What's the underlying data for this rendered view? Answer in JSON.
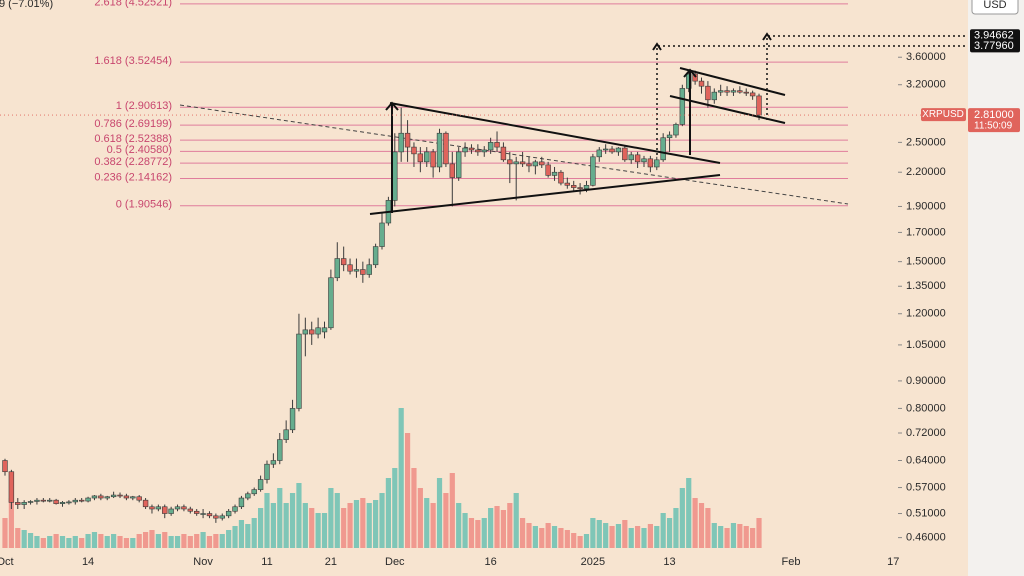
{
  "chart_data": {
    "type": "candlestick",
    "header_fragment": "9 (−7.01%)",
    "currency": "USD",
    "log_scale": true,
    "ylim": [
      0.44,
      4.6
    ],
    "yticks": [
      {
        "value": 3.6,
        "label": "3.60000"
      },
      {
        "value": 3.2,
        "label": "3.20000"
      },
      {
        "value": 2.5,
        "label": "2.50000"
      },
      {
        "value": 2.2,
        "label": "2.20000"
      },
      {
        "value": 1.9,
        "label": "1.90000"
      },
      {
        "value": 1.7,
        "label": "1.70000"
      },
      {
        "value": 1.5,
        "label": "1.50000"
      },
      {
        "value": 1.35,
        "label": "1.35000"
      },
      {
        "value": 1.2,
        "label": "1.20000"
      },
      {
        "value": 1.05,
        "label": "1.05000"
      },
      {
        "value": 0.9,
        "label": "0.90000"
      },
      {
        "value": 0.8,
        "label": "0.80000"
      },
      {
        "value": 0.72,
        "label": "0.72000"
      },
      {
        "value": 0.64,
        "label": "0.64000"
      },
      {
        "value": 0.57,
        "label": "0.57000"
      },
      {
        "value": 0.51,
        "label": "0.51000"
      },
      {
        "value": 0.46,
        "label": "0.46000"
      }
    ],
    "fib_levels": [
      {
        "label": "2.618 (4.52521)",
        "value": 4.52521
      },
      {
        "label": "1.618 (3.52454)",
        "value": 3.52454
      },
      {
        "label": "1 (2.90613)",
        "value": 2.90613
      },
      {
        "label": "0.786 (2.69199)",
        "value": 2.69199
      },
      {
        "label": "0.618 (2.52388)",
        "value": 2.52388
      },
      {
        "label": "0.5 (2.40580)",
        "value": 2.4058
      },
      {
        "label": "0.382 (2.28772)",
        "value": 2.28772
      },
      {
        "label": "0.236 (2.14162)",
        "value": 2.14162
      },
      {
        "label": "0 (1.90546)",
        "value": 1.90546
      }
    ],
    "fib_color": "#e07d9c",
    "target_levels": [
      3.94662,
      {
        "value": 3.7796,
        "label": "3.77960"
      }
    ],
    "last_price": {
      "symbol": "XRPUSD",
      "value": 2.81,
      "label": "2.81000",
      "countdown": "11:50:09"
    },
    "up_color": "#66ad8e",
    "down_color": "#e0645c",
    "volume_up_color": "#7fc6b7",
    "volume_down_color": "#f0998f",
    "categories": [
      "Oct",
      null,
      null,
      null,
      null,
      null,
      null,
      null,
      null,
      null,
      null,
      null,
      null,
      "14",
      null,
      null,
      null,
      null,
      null,
      null,
      null,
      null,
      null,
      null,
      null,
      null,
      null,
      null,
      null,
      null,
      null,
      "Nov",
      null,
      null,
      null,
      null,
      null,
      null,
      null,
      null,
      null,
      "11",
      null,
      null,
      null,
      null,
      null,
      null,
      null,
      null,
      null,
      "21",
      null,
      null,
      null,
      null,
      null,
      null,
      null,
      null,
      null,
      "Dec",
      null,
      null,
      null,
      null,
      null,
      null,
      null,
      null,
      null,
      null,
      null,
      null,
      null,
      null,
      "16",
      null,
      null,
      null,
      null,
      null,
      null,
      null,
      null,
      null,
      null,
      null,
      null,
      null,
      null,
      null,
      "2025",
      null,
      null,
      null,
      null,
      null,
      null,
      null,
      null,
      null,
      null,
      null,
      "13",
      null,
      null,
      null,
      null,
      null,
      null,
      null,
      null,
      null,
      null,
      null,
      null,
      null,
      null,
      null,
      null,
      null,
      null,
      "Feb",
      null,
      null,
      null,
      null,
      null,
      null,
      null,
      null,
      null,
      null,
      null,
      null,
      null,
      null,
      null,
      "17"
    ],
    "open": [
      0.64,
      0.61,
      0.535,
      0.53,
      0.535,
      0.537,
      0.54,
      0.538,
      0.54,
      0.532,
      0.535,
      0.536,
      0.54,
      0.538,
      0.545,
      0.55,
      0.545,
      0.548,
      0.552,
      0.55,
      0.545,
      0.548,
      0.54,
      0.525,
      0.52,
      0.525,
      0.51,
      0.52,
      0.525,
      0.52,
      0.515,
      0.51,
      0.51,
      0.505,
      0.5,
      0.505,
      0.515,
      0.525,
      0.545,
      0.555,
      0.565,
      0.59,
      0.63,
      0.64,
      0.7,
      0.73,
      0.8,
      1.1,
      1.12,
      1.1,
      1.11,
      1.13,
      1.4,
      1.52,
      1.48,
      1.44,
      1.45,
      1.42,
      1.48,
      1.6,
      1.77,
      1.95,
      2.4,
      2.6,
      2.45,
      2.38,
      2.3,
      2.4,
      2.25,
      2.6,
      2.28,
      2.15,
      2.4,
      2.44,
      2.42,
      2.4,
      2.42,
      2.5,
      2.45,
      2.32,
      2.28,
      2.3,
      2.28,
      2.26,
      2.3,
      2.27,
      2.17,
      2.2,
      2.1,
      2.08,
      2.06,
      2.05,
      2.08,
      2.35,
      2.42,
      2.43,
      2.4,
      2.44,
      2.32,
      2.37,
      2.3,
      2.33,
      2.25,
      2.32,
      2.55,
      2.58,
      2.7,
      3.15,
      3.35,
      3.25,
      3.18,
      3.0,
      3.1,
      3.12,
      3.1,
      3.12,
      3.1,
      3.09,
      3.05,
      null,
      null,
      null,
      null,
      null,
      null,
      null,
      null,
      null,
      null,
      null,
      null,
      null,
      null,
      null,
      null,
      null,
      null,
      null,
      null,
      null
    ],
    "high": [
      0.645,
      0.615,
      0.545,
      0.54,
      0.54,
      0.545,
      0.545,
      0.545,
      0.543,
      0.538,
      0.54,
      0.545,
      0.545,
      0.548,
      0.552,
      0.555,
      0.55,
      0.56,
      0.558,
      0.555,
      0.55,
      0.552,
      0.545,
      0.53,
      0.53,
      0.53,
      0.525,
      0.53,
      0.53,
      0.525,
      0.52,
      0.52,
      0.515,
      0.51,
      0.51,
      0.52,
      0.53,
      0.55,
      0.56,
      0.57,
      0.6,
      0.64,
      0.66,
      0.72,
      0.76,
      0.83,
      1.2,
      1.18,
      1.16,
      1.18,
      1.16,
      1.45,
      1.63,
      1.6,
      1.52,
      1.52,
      1.5,
      1.52,
      1.62,
      1.85,
      1.98,
      2.6,
      2.9,
      2.75,
      2.5,
      2.45,
      2.45,
      2.43,
      2.65,
      2.62,
      2.4,
      2.45,
      2.5,
      2.48,
      2.48,
      2.46,
      2.55,
      2.62,
      2.5,
      2.4,
      2.35,
      2.4,
      2.35,
      2.32,
      2.35,
      2.3,
      2.25,
      2.22,
      2.15,
      2.12,
      2.1,
      2.12,
      2.38,
      2.45,
      2.48,
      2.46,
      2.45,
      2.47,
      2.4,
      2.4,
      2.36,
      2.36,
      2.35,
      2.6,
      2.62,
      2.72,
      3.2,
      3.4,
      3.4,
      3.3,
      3.25,
      3.15,
      3.2,
      3.18,
      3.15,
      3.18,
      3.15,
      3.12,
      3.08,
      null,
      null,
      null,
      null,
      null,
      null,
      null,
      null,
      null,
      null,
      null,
      null,
      null,
      null,
      null,
      null,
      null,
      null,
      null,
      null,
      null
    ],
    "low": [
      0.6,
      0.52,
      0.52,
      0.52,
      0.53,
      0.53,
      0.535,
      0.535,
      0.53,
      0.525,
      0.53,
      0.53,
      0.535,
      0.535,
      0.54,
      0.54,
      0.54,
      0.545,
      0.545,
      0.54,
      0.54,
      0.535,
      0.52,
      0.51,
      0.515,
      0.5,
      0.505,
      0.515,
      0.515,
      0.51,
      0.505,
      0.5,
      0.5,
      0.49,
      0.495,
      0.5,
      0.51,
      0.52,
      0.54,
      0.55,
      0.56,
      0.58,
      0.62,
      0.63,
      0.69,
      0.72,
      0.79,
      1.0,
      1.05,
      1.08,
      1.08,
      1.12,
      1.38,
      1.44,
      1.42,
      1.4,
      1.37,
      1.4,
      1.46,
      1.58,
      1.75,
      1.9,
      2.3,
      2.3,
      2.25,
      2.2,
      2.25,
      2.15,
      2.2,
      2.25,
      1.9,
      2.12,
      2.35,
      2.38,
      2.36,
      2.35,
      2.38,
      2.4,
      2.3,
      2.1,
      1.95,
      2.25,
      2.2,
      2.18,
      2.24,
      2.15,
      2.12,
      2.08,
      2.05,
      2.03,
      2.0,
      2.02,
      2.07,
      2.3,
      2.38,
      2.38,
      2.36,
      2.3,
      2.28,
      2.24,
      2.25,
      2.2,
      2.22,
      2.3,
      2.4,
      2.55,
      2.68,
      3.1,
      3.2,
      3.08,
      2.9,
      2.95,
      3.05,
      3.05,
      3.05,
      3.08,
      3.05,
      3.0,
      2.75,
      null,
      null,
      null,
      null,
      null,
      null,
      null,
      null,
      null,
      null,
      null,
      null,
      null,
      null,
      null,
      null,
      null,
      null,
      null,
      null,
      null
    ],
    "close": [
      0.61,
      0.535,
      0.53,
      0.535,
      0.537,
      0.54,
      0.538,
      0.54,
      0.532,
      0.535,
      0.536,
      0.54,
      0.538,
      0.545,
      0.55,
      0.545,
      0.548,
      0.552,
      0.55,
      0.545,
      0.548,
      0.54,
      0.525,
      0.52,
      0.525,
      0.51,
      0.52,
      0.525,
      0.52,
      0.515,
      0.51,
      0.51,
      0.505,
      0.5,
      0.505,
      0.515,
      0.525,
      0.545,
      0.555,
      0.565,
      0.59,
      0.63,
      0.64,
      0.7,
      0.73,
      0.8,
      1.1,
      1.12,
      1.1,
      1.13,
      1.13,
      1.4,
      1.52,
      1.48,
      1.44,
      1.45,
      1.42,
      1.48,
      1.6,
      1.77,
      1.95,
      2.4,
      2.6,
      2.45,
      2.38,
      2.3,
      2.4,
      2.25,
      2.6,
      2.28,
      2.15,
      2.4,
      2.44,
      2.42,
      2.4,
      2.42,
      2.5,
      2.45,
      2.32,
      2.28,
      2.3,
      2.28,
      2.26,
      2.3,
      2.27,
      2.17,
      2.2,
      2.1,
      2.08,
      2.06,
      2.05,
      2.08,
      2.35,
      2.42,
      2.43,
      2.4,
      2.44,
      2.32,
      2.37,
      2.3,
      2.33,
      2.25,
      2.32,
      2.55,
      2.58,
      2.7,
      3.15,
      3.35,
      3.25,
      3.18,
      3.0,
      3.1,
      3.12,
      3.1,
      3.12,
      3.1,
      3.09,
      3.05,
      2.81,
      null,
      null,
      null,
      null,
      null,
      null,
      null,
      null,
      null,
      null,
      null,
      null,
      null,
      null,
      null,
      null,
      null,
      null,
      null,
      null,
      null
    ],
    "volume": [
      30,
      50,
      20,
      18,
      15,
      12,
      10,
      12,
      14,
      12,
      10,
      12,
      10,
      14,
      16,
      14,
      12,
      14,
      12,
      10,
      10,
      14,
      16,
      18,
      14,
      16,
      12,
      12,
      14,
      12,
      14,
      16,
      12,
      14,
      14,
      18,
      22,
      28,
      24,
      30,
      40,
      55,
      45,
      60,
      45,
      55,
      65,
      45,
      40,
      35,
      35,
      60,
      55,
      40,
      45,
      48,
      50,
      45,
      48,
      55,
      70,
      80,
      140,
      115,
      80,
      60,
      50,
      45,
      70,
      55,
      75,
      45,
      35,
      30,
      28,
      30,
      40,
      42,
      38,
      45,
      55,
      30,
      25,
      22,
      20,
      25,
      22,
      20,
      18,
      15,
      12,
      14,
      30,
      28,
      25,
      22,
      24,
      28,
      20,
      22,
      20,
      24,
      22,
      35,
      30,
      40,
      60,
      70,
      50,
      45,
      40,
      25,
      22,
      20,
      25,
      24,
      22,
      20,
      30,
      null,
      null,
      null,
      null,
      null,
      null,
      null,
      null,
      null,
      null,
      null,
      null,
      null,
      null,
      null,
      null,
      null,
      null,
      null,
      null,
      null
    ]
  }
}
